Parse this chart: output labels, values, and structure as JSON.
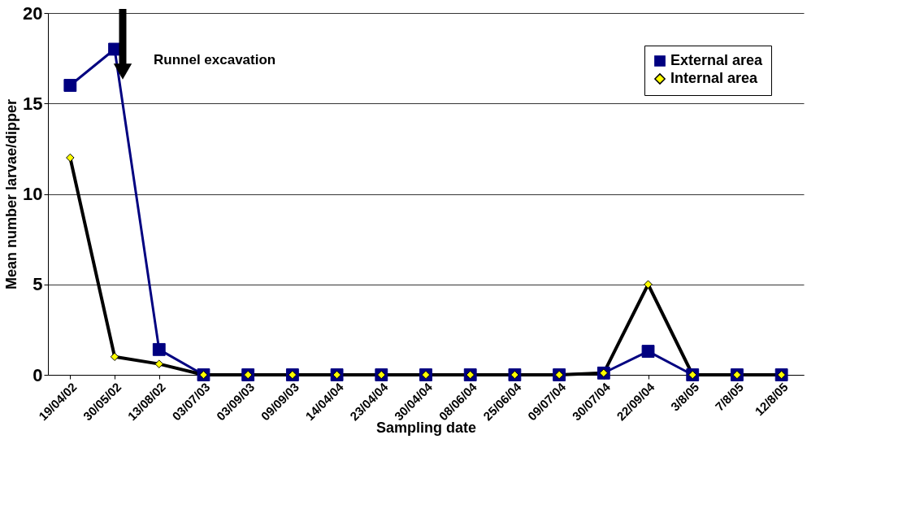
{
  "chart_data": {
    "type": "line",
    "xlabel": "Sampling date",
    "ylabel": "Mean number larvae/dipper",
    "categories": [
      "19/04/02",
      "30/05/02",
      "13/08/02",
      "03/07/03",
      "03/09/03",
      "09/09/03",
      "14/04/04",
      "23/04/04",
      "30/04/04",
      "08/06/04",
      "25/06/04",
      "09/07/04",
      "30/07/04",
      "22/09/04",
      "3/8/05",
      "7/8/05",
      "12/8/05"
    ],
    "series": [
      {
        "name": "External area",
        "color": "#000080",
        "marker": "square",
        "values": [
          16,
          18,
          1.4,
          0,
          0,
          0,
          0,
          0,
          0,
          0,
          0,
          0,
          0.1,
          1.3,
          0,
          0,
          0
        ]
      },
      {
        "name": "Internal area",
        "color": "#000000",
        "marker": "diamond",
        "values": [
          12,
          1,
          0.6,
          0,
          0,
          0,
          0,
          0,
          0,
          0,
          0,
          0,
          0.1,
          5,
          0,
          0,
          0
        ]
      }
    ],
    "ylim": [
      0,
      20
    ],
    "yticks": [
      0,
      5,
      10,
      15,
      20
    ],
    "grid": "y",
    "legend": "top right",
    "line_style": "solid",
    "annotations": [
      "Runnel excavation"
    ]
  }
}
